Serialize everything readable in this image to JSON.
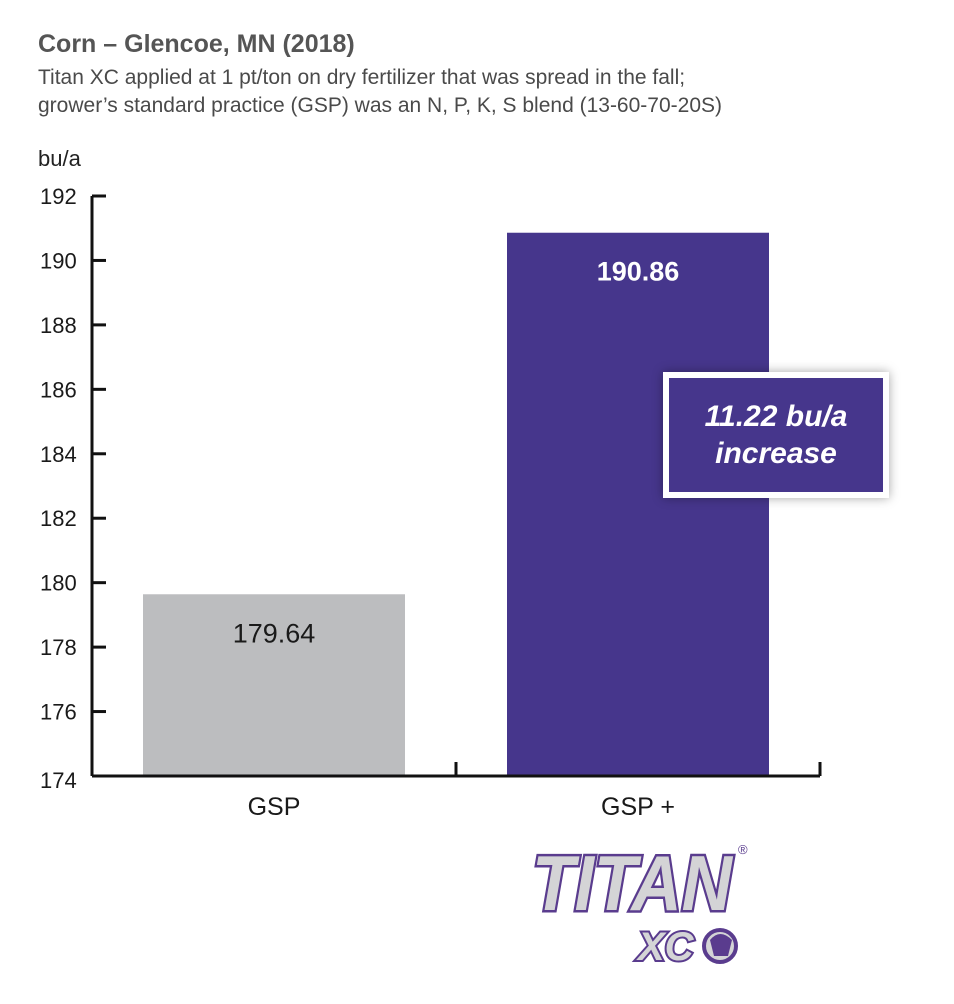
{
  "chart_data": {
    "type": "bar",
    "title": "Corn – Glencoe, MN (2018)",
    "subtitle_lines": [
      "Titan XC applied at 1 pt/ton on dry fertilizer that was spread in the fall;",
      "grower’s standard practice (GSP) was an N, P, K, S blend (13-60-70-20S)"
    ],
    "ylabel": "bu/a",
    "ylim": [
      174,
      192
    ],
    "yticks": [
      174,
      176,
      178,
      180,
      182,
      184,
      186,
      188,
      190,
      192
    ],
    "categories": [
      "GSP",
      "GSP +"
    ],
    "values": [
      179.64,
      190.86
    ],
    "value_labels": [
      "179.64",
      "190.86"
    ],
    "bar_colors": [
      "#bcbdbf",
      "#46368c"
    ],
    "label_colors": [
      "#1a1a1a",
      "#ffffff"
    ],
    "annotation": {
      "line1": "11.22 bu/a",
      "line2": "increase"
    },
    "grid": false
  },
  "logo": {
    "brand": "TITAN",
    "suffix": "XC",
    "mark": "®"
  }
}
